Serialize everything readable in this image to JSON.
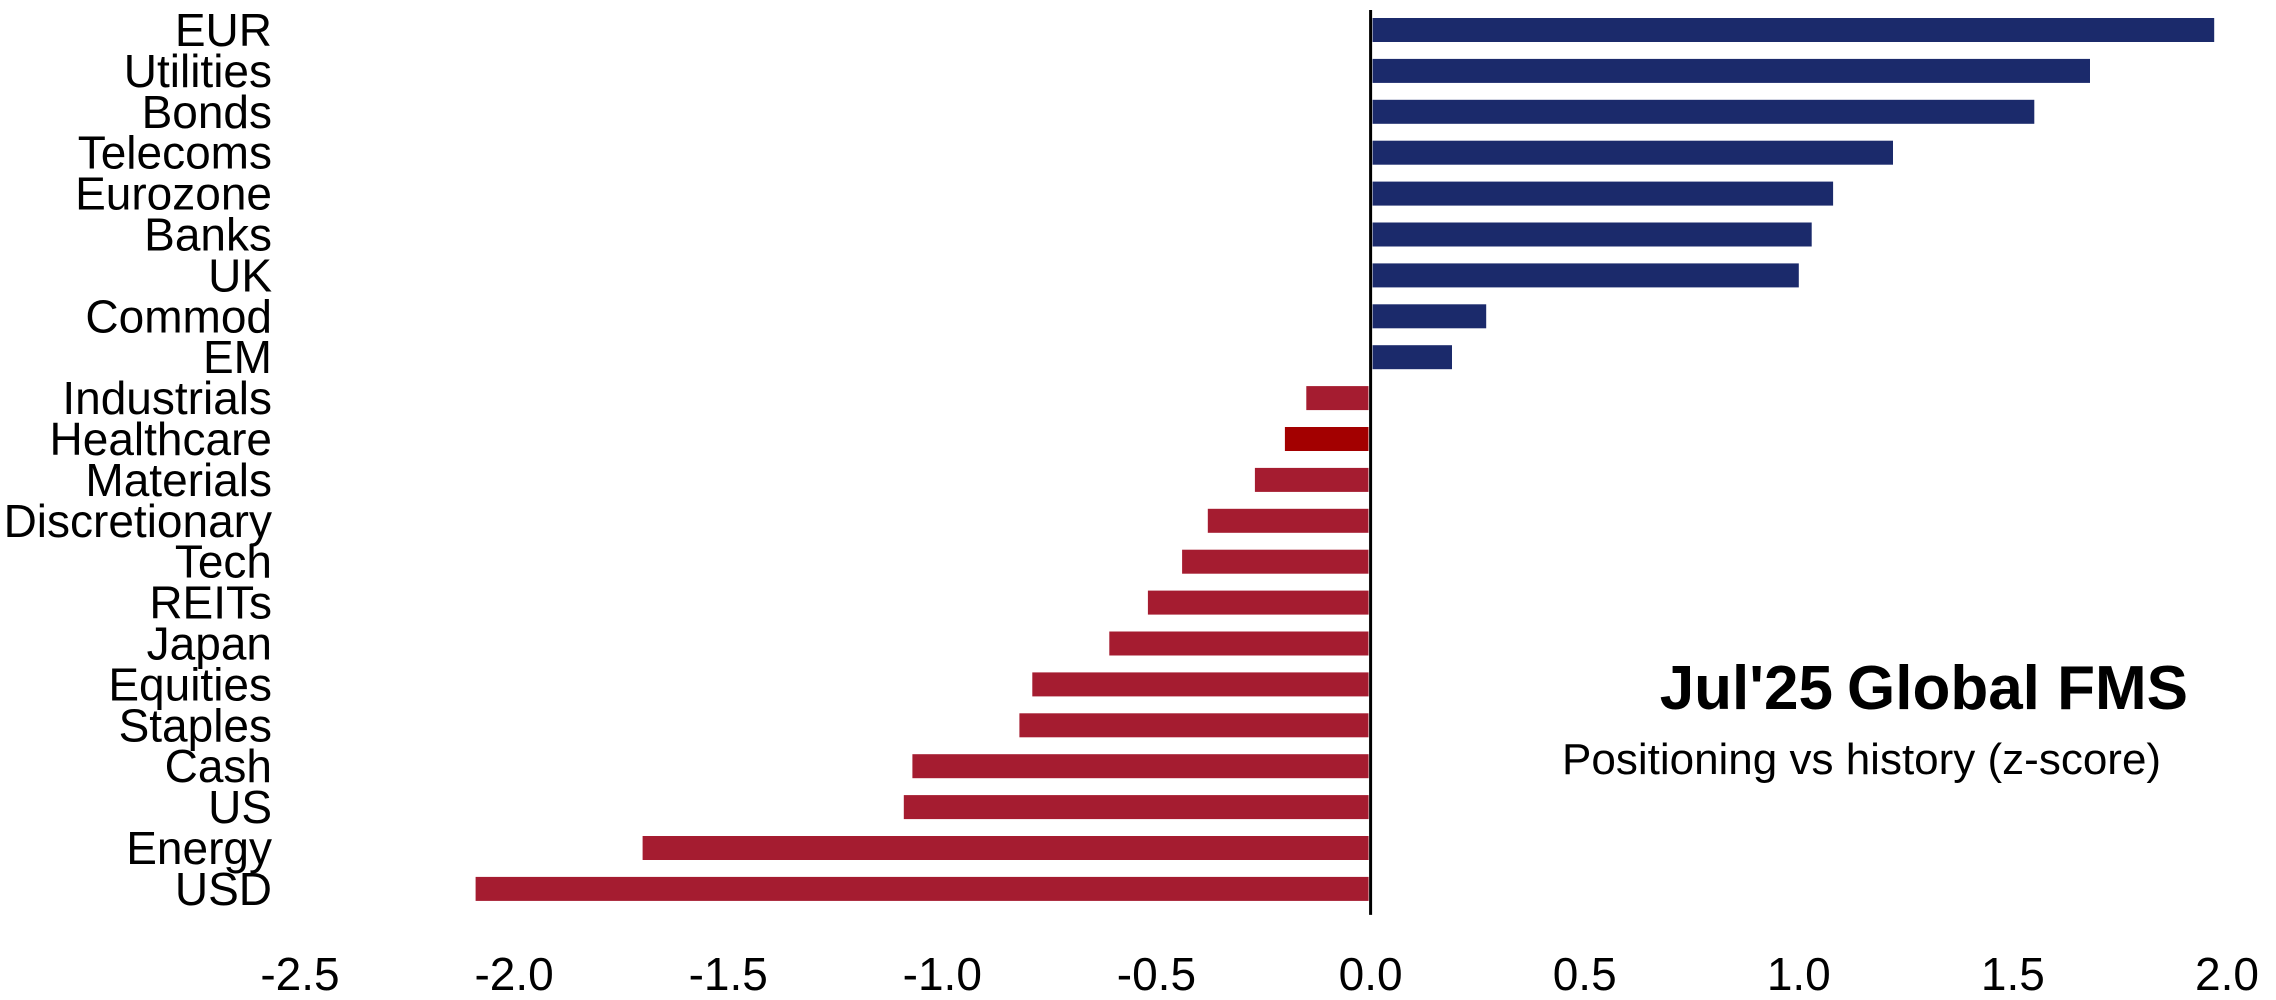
{
  "chart_data": {
    "type": "bar",
    "orientation": "horizontal",
    "title_prefix": "Jul'25",
    "title": "Global FMS",
    "subtitle": "Positioning vs history (z-score)",
    "xlabel": "",
    "ylabel": "",
    "xlim": [
      -2.5,
      2.0
    ],
    "xticks": [
      "-2.5",
      "-2.0",
      "-1.5",
      "-1.0",
      "-0.5",
      "0.0",
      "0.5",
      "1.0",
      "1.5",
      "2.0"
    ],
    "grid": false,
    "legend": "none",
    "colors": {
      "positive": "#1b2a6b",
      "negative": "#a51c30",
      "highlight": "#a30000",
      "zero_line": "#000000"
    },
    "categories": [
      "EUR",
      "Utilities",
      "Bonds",
      "Telecoms",
      "Eurozone",
      "Banks",
      "UK",
      "Commod",
      "EM",
      "Industrials",
      "Healthcare",
      "Materials",
      "Discretionary",
      "Tech",
      "REITs",
      "Japan",
      "Equities",
      "Staples",
      "Cash",
      "US",
      "Energy",
      "USD"
    ],
    "values": [
      1.97,
      1.68,
      1.55,
      1.22,
      1.08,
      1.03,
      1.0,
      0.27,
      0.19,
      -0.15,
      -0.2,
      -0.27,
      -0.38,
      -0.44,
      -0.52,
      -0.61,
      -0.79,
      -0.82,
      -1.07,
      -1.09,
      -1.7,
      -2.09
    ],
    "highlight_category": "Healthcare"
  }
}
